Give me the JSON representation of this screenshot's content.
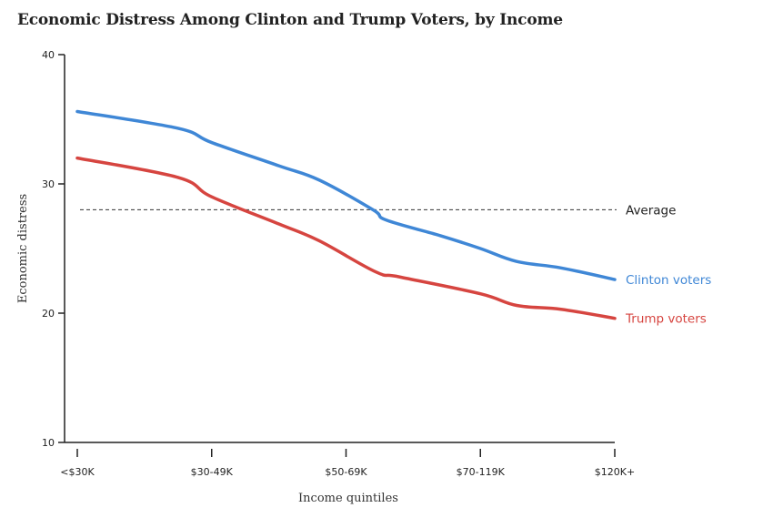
{
  "chart_data": {
    "type": "line",
    "title": "Economic Distress Among Clinton and Trump Voters, by Income",
    "xlabel": "Income quintiles",
    "ylabel": "Economic distress",
    "categories": [
      "<$30K",
      "$30-49K",
      "$50-69K",
      "$70-119K",
      "$120K+"
    ],
    "ylim": [
      10,
      40
    ],
    "yticks": [
      10,
      20,
      30,
      40
    ],
    "grid": false,
    "legend": "inline-right",
    "series": [
      {
        "name": "Clinton voters",
        "color": "#3f87d6",
        "points": [
          [
            0,
            35.6
          ],
          [
            0.75,
            34.3
          ],
          [
            1,
            33.2
          ],
          [
            1.5,
            31.4
          ],
          [
            1.8,
            30.3
          ],
          [
            2.2,
            28.0
          ],
          [
            2.3,
            27.2
          ],
          [
            2.7,
            26.0
          ],
          [
            3,
            25.0
          ],
          [
            3.27,
            24.0
          ],
          [
            3.6,
            23.5
          ],
          [
            4,
            22.6
          ]
        ]
      },
      {
        "name": "Trump voters",
        "color": "#d64540",
        "points": [
          [
            0,
            32.0
          ],
          [
            0.75,
            30.5
          ],
          [
            1,
            29.0
          ],
          [
            1.5,
            26.9
          ],
          [
            1.8,
            25.6
          ],
          [
            2.22,
            23.2
          ],
          [
            2.4,
            22.8
          ],
          [
            3,
            21.5
          ],
          [
            3.27,
            20.6
          ],
          [
            3.6,
            20.3
          ],
          [
            4,
            19.6
          ]
        ]
      }
    ],
    "reference_line": {
      "label": "Average",
      "value": 28
    }
  }
}
